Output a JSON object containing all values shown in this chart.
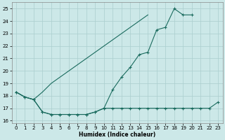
{
  "xlabel": "Humidex (Indice chaleur)",
  "x": [
    0,
    1,
    2,
    3,
    4,
    5,
    6,
    7,
    8,
    9,
    10,
    11,
    12,
    13,
    14,
    15,
    16,
    17,
    18,
    19,
    20,
    21,
    22,
    23
  ],
  "line_diagonal": [
    18.3,
    17.9,
    17.7,
    18.3,
    19.0,
    19.5,
    20.0,
    20.5,
    21.0,
    21.5,
    22.0,
    22.5,
    23.0,
    23.5,
    24.0,
    24.5,
    null,
    null,
    null,
    null,
    null,
    null,
    null,
    null
  ],
  "line_arc": [
    18.3,
    17.9,
    17.7,
    16.7,
    16.5,
    16.5,
    16.5,
    16.5,
    16.5,
    16.7,
    17.0,
    18.5,
    19.5,
    20.3,
    21.3,
    21.5,
    23.3,
    23.5,
    25.0,
    24.5,
    24.5,
    null,
    null,
    null
  ],
  "line_flat": [
    18.3,
    17.9,
    17.7,
    16.7,
    16.5,
    16.5,
    16.5,
    16.5,
    16.5,
    16.7,
    17.0,
    17.0,
    17.0,
    17.0,
    17.0,
    17.0,
    17.0,
    17.0,
    17.0,
    17.0,
    17.0,
    17.0,
    17.0,
    17.5
  ],
  "line_color": "#1a6b5e",
  "bg_color": "#cce8e8",
  "grid_color": "#aacece",
  "ylim": [
    15.8,
    25.5
  ],
  "xlim": [
    -0.5,
    23.5
  ],
  "yticks": [
    16,
    17,
    18,
    19,
    20,
    21,
    22,
    23,
    24,
    25
  ],
  "xticks": [
    0,
    1,
    2,
    3,
    4,
    5,
    6,
    7,
    8,
    9,
    10,
    11,
    12,
    13,
    14,
    15,
    16,
    17,
    18,
    19,
    20,
    21,
    22,
    23
  ]
}
